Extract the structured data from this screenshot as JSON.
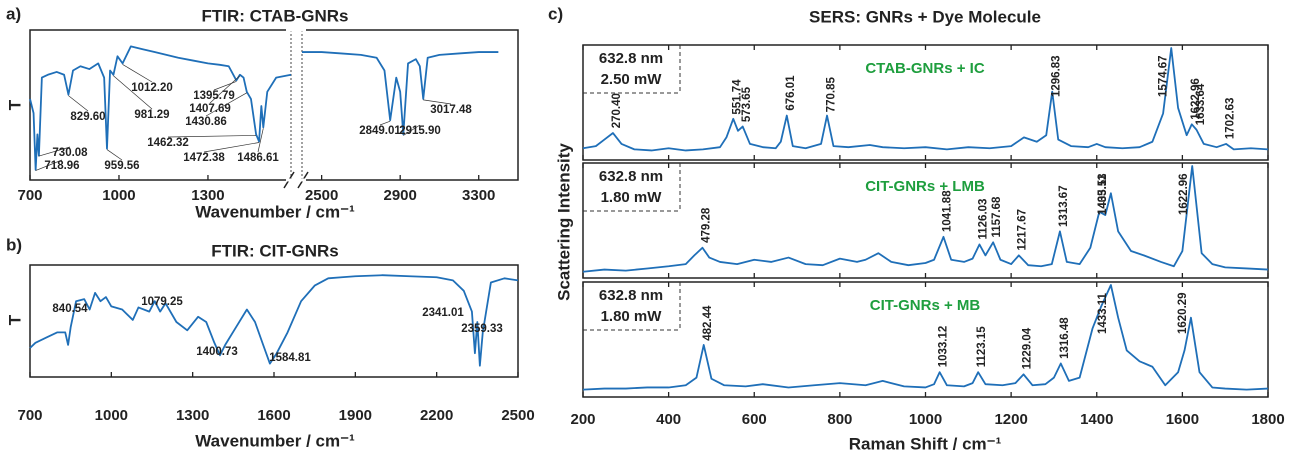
{
  "chart_data": [
    {
      "type": "line",
      "panel_label": "a)",
      "title": "FTIR: CTAB-GNRs",
      "xlabel": "Wavenumber / cm⁻¹",
      "ylabel": "T",
      "color": "#1f6fb8",
      "ylim": [
        0,
        100
      ],
      "segments": [
        {
          "xlim": [
            700,
            1580
          ],
          "xticks": [
            700,
            1000,
            1300
          ],
          "x": [
            700,
            712,
            719,
            725,
            730,
            740,
            760,
            790,
            815,
            829.6,
            845,
            870,
            900,
            930,
            950,
            959.56,
            970,
            981.29,
            995,
            1012.2,
            1040,
            1080,
            1120,
            1160,
            1200,
            1250,
            1300,
            1340,
            1370,
            1395.79,
            1407.69,
            1420,
            1430.86,
            1445,
            1462.32,
            1472.38,
            1480,
            1486.61,
            1500,
            1530,
            1580
          ],
          "values": [
            55,
            45,
            5,
            30,
            15,
            70,
            72,
            74,
            72,
            58,
            75,
            78,
            76,
            80,
            70,
            20,
            75,
            72,
            85,
            80,
            92,
            90,
            88,
            86,
            84,
            82,
            80,
            79,
            78,
            68,
            72,
            70,
            60,
            55,
            30,
            25,
            50,
            35,
            60,
            70,
            72
          ],
          "peaks": [
            718.96,
            730.08,
            {
              "value": 829.6,
              "label": "829.60"
            },
            959.56,
            981.29,
            {
              "value": 1012.2,
              "label": "1012.20"
            },
            1395.79,
            1407.69,
            1430.86,
            1462.32,
            1472.38,
            1486.61
          ]
        },
        {
          "xlim": [
            2400,
            3500
          ],
          "xticks": [
            2500,
            2900,
            3300
          ],
          "x": [
            2400,
            2500,
            2600,
            2700,
            2780,
            2820,
            2849.01,
            2880,
            2900,
            2915.9,
            2940,
            2980,
            3000,
            3017.48,
            3040,
            3100,
            3200,
            3300,
            3400
          ],
          "values": [
            88,
            88,
            87,
            86,
            84,
            75,
            40,
            70,
            60,
            30,
            80,
            83,
            78,
            55,
            84,
            86,
            87,
            88,
            88
          ],
          "peaks": [
            2849.01,
            {
              "value": 2915.9,
              "label": "2915.90"
            },
            3017.48
          ]
        }
      ]
    },
    {
      "type": "line",
      "panel_label": "b)",
      "title": "FTIR: CIT-GNRs",
      "xlabel": "Wavenumber / cm⁻¹",
      "ylabel": "T",
      "color": "#1f6fb8",
      "ylim": [
        0,
        100
      ],
      "xlim": [
        700,
        2500
      ],
      "xticks": [
        700,
        1000,
        1300,
        1600,
        1900,
        2200,
        2500
      ],
      "x": [
        700,
        720,
        760,
        800,
        830,
        840.54,
        850,
        870,
        900,
        920,
        940,
        960,
        980,
        1000,
        1040,
        1079.25,
        1100,
        1140,
        1160,
        1180,
        1200,
        1240,
        1280,
        1320,
        1350,
        1380,
        1400.73,
        1420,
        1460,
        1500,
        1530,
        1560,
        1584.81,
        1610,
        1650,
        1700,
        1750,
        1800,
        1850,
        1900,
        2000,
        2100,
        2200,
        2260,
        2300,
        2330,
        2341.01,
        2350,
        2359.33,
        2370,
        2400,
        2450,
        2500
      ],
      "values": [
        25,
        30,
        35,
        40,
        40,
        28,
        45,
        70,
        72,
        62,
        78,
        70,
        74,
        65,
        62,
        52,
        64,
        60,
        70,
        60,
        68,
        50,
        42,
        55,
        50,
        30,
        18,
        28,
        45,
        62,
        50,
        28,
        10,
        20,
        40,
        70,
        85,
        92,
        93,
        94,
        95,
        94,
        93,
        90,
        80,
        60,
        20,
        50,
        8,
        40,
        88,
        92,
        90
      ],
      "peaks": [
        840.54,
        1079.25,
        1400.73,
        1584.81,
        2341.01,
        2359.33
      ]
    },
    {
      "type": "line",
      "panel_label": "c)",
      "title": "SERS: GNRs + Dye Molecule",
      "xlabel": "Raman Shift / cm⁻¹",
      "ylabel": "Scattering Intensity",
      "color": "#1f6fb8",
      "label_color": "#1e9e3e",
      "xlim": [
        200,
        1800
      ],
      "xticks": [
        200,
        400,
        600,
        800,
        1000,
        1200,
        1400,
        1600,
        1800
      ],
      "ylim": [
        0,
        100
      ],
      "panels": [
        {
          "name": "CTAB-GNRs + IC",
          "laser": "632.8 nm",
          "power": "2.50 mW",
          "x": [
            200,
            230,
            250,
            270,
            290,
            320,
            360,
            400,
            440,
            480,
            520,
            535,
            551,
            562,
            573,
            590,
            620,
            650,
            662,
            676,
            690,
            720,
            756,
            770,
            785,
            820,
            870,
            900,
            950,
            1000,
            1050,
            1100,
            1150,
            1200,
            1230,
            1260,
            1282,
            1296,
            1310,
            1340,
            1380,
            1400,
            1420,
            1460,
            1500,
            1530,
            1555,
            1574,
            1590,
            1610,
            1622,
            1633,
            1650,
            1680,
            1702,
            1720,
            1760,
            1800
          ],
          "values": [
            8,
            10,
            16,
            22,
            12,
            7,
            6,
            8,
            6,
            7,
            9,
            18,
            35,
            24,
            28,
            12,
            9,
            8,
            14,
            38,
            10,
            8,
            12,
            38,
            10,
            9,
            11,
            9,
            8,
            9,
            7,
            9,
            8,
            10,
            18,
            14,
            20,
            60,
            16,
            10,
            9,
            12,
            9,
            8,
            9,
            14,
            40,
            100,
            45,
            20,
            30,
            25,
            12,
            9,
            12,
            7,
            8,
            7
          ],
          "peaks": [
            {
              "value": 270.4,
              "label": "270.40"
            },
            551.74,
            573.65,
            676.01,
            770.85,
            1296.83,
            1574.67,
            1622.96,
            1633.64,
            1702.63
          ]
        },
        {
          "name": "CIT-GNRs + LMB",
          "laser": "632.8 nm",
          "power": "1.80 mW",
          "x": [
            200,
            250,
            300,
            350,
            400,
            440,
            460,
            479,
            495,
            520,
            560,
            600,
            640,
            680,
            720,
            760,
            800,
            840,
            860,
            890,
            920,
            960,
            1000,
            1020,
            1042,
            1060,
            1090,
            1110,
            1126,
            1140,
            1158,
            1175,
            1200,
            1218,
            1240,
            1270,
            1295,
            1314,
            1330,
            1360,
            1385,
            1406,
            1420,
            1433,
            1450,
            1480,
            1510,
            1550,
            1580,
            1600,
            1623,
            1645,
            1670,
            1700,
            1750,
            1800
          ],
          "values": [
            3,
            5,
            4,
            6,
            8,
            10,
            18,
            25,
            16,
            12,
            10,
            14,
            12,
            16,
            10,
            9,
            15,
            12,
            14,
            20,
            12,
            9,
            11,
            14,
            35,
            14,
            12,
            15,
            28,
            18,
            30,
            14,
            10,
            18,
            9,
            8,
            10,
            40,
            12,
            10,
            25,
            58,
            55,
            75,
            40,
            22,
            18,
            12,
            8,
            22,
            100,
            20,
            10,
            7,
            6,
            5
          ],
          "peaks": [
            479.28,
            1041.88,
            1126.03,
            1157.68,
            1217.67,
            1313.67,
            1405.53,
            1433.11,
            1622.96
          ]
        },
        {
          "name": "CIT-GNRs + MB",
          "laser": "632.8 nm",
          "power": "1.80 mW",
          "x": [
            200,
            250,
            300,
            350,
            400,
            440,
            465,
            482,
            500,
            530,
            580,
            620,
            680,
            740,
            800,
            860,
            900,
            950,
            1000,
            1020,
            1033,
            1050,
            1090,
            1110,
            1123,
            1140,
            1180,
            1210,
            1229,
            1250,
            1280,
            1300,
            1316,
            1335,
            1360,
            1390,
            1410,
            1433,
            1450,
            1470,
            1500,
            1530,
            1560,
            1590,
            1605,
            1620,
            1640,
            1670,
            1700,
            1750,
            1800
          ],
          "values": [
            4,
            5,
            5,
            6,
            6,
            8,
            15,
            45,
            14,
            8,
            7,
            9,
            6,
            8,
            10,
            8,
            12,
            7,
            6,
            9,
            20,
            8,
            7,
            10,
            20,
            9,
            8,
            10,
            18,
            8,
            9,
            15,
            28,
            12,
            15,
            60,
            80,
            100,
            70,
            40,
            30,
            25,
            8,
            20,
            40,
            70,
            20,
            6,
            5,
            4,
            5
          ],
          "peaks": [
            482.44,
            1033.12,
            1123.15,
            1229.04,
            1316.48,
            1433.11,
            1620.29
          ]
        }
      ]
    }
  ]
}
